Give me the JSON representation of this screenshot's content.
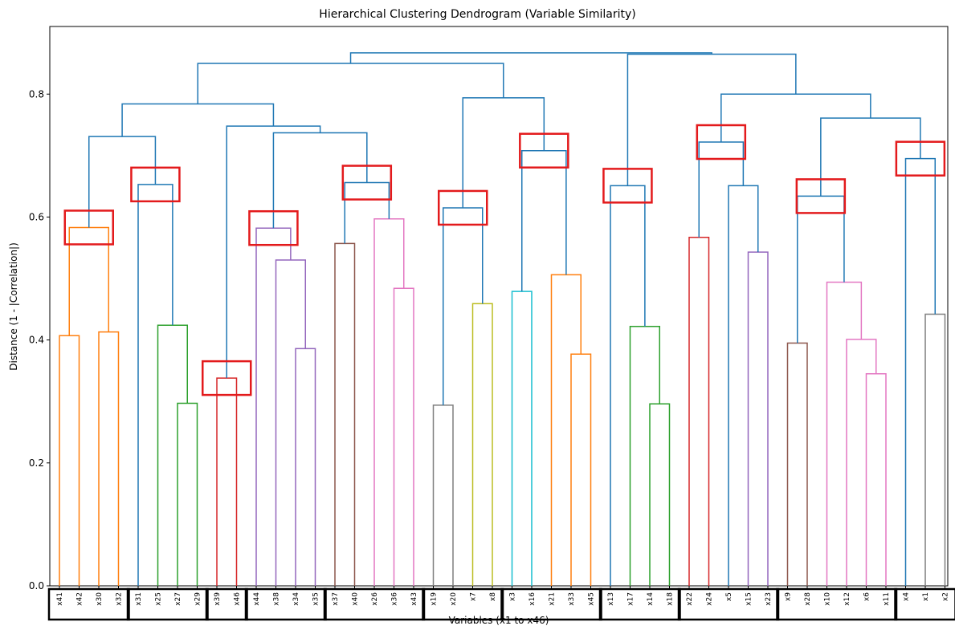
{
  "chart_data": {
    "type": "dendrogram",
    "title": "Hierarchical Clustering Dendrogram (Variable Similarity)",
    "xlabel": "Variables (x1 to x46)",
    "ylabel": "Distance (1 - |Correlation|)",
    "ylim": [
      0,
      0.91
    ],
    "yticks": [
      0.0,
      0.2,
      0.4,
      0.6,
      0.8
    ],
    "ytick_labels": [
      "0.0",
      "0.2",
      "0.4",
      "0.6",
      "0.8"
    ],
    "leaves": [
      "x41",
      "x42",
      "x30",
      "x32",
      "x31",
      "x25",
      "x27",
      "x29",
      "x39",
      "x46",
      "x44",
      "x38",
      "x34",
      "x35",
      "x37",
      "x40",
      "x26",
      "x36",
      "x43",
      "x19",
      "x20",
      "x7",
      "x8",
      "x3",
      "x16",
      "x21",
      "x33",
      "x45",
      "x13",
      "x17",
      "x14",
      "x18",
      "x22",
      "x24",
      "x5",
      "x15",
      "x23",
      "x9",
      "x28",
      "x10",
      "x12",
      "x6",
      "x11",
      "x4",
      "x1",
      "x2"
    ],
    "merges": [
      {
        "left": 0,
        "right": 1,
        "height": 0.407,
        "color": "#ff7f0e"
      },
      {
        "left": 2,
        "right": 3,
        "height": 0.413,
        "color": "#ff7f0e"
      },
      {
        "left": 46,
        "right": 47,
        "height": 0.583,
        "color": "#ff7f0e"
      },
      {
        "left": 6,
        "right": 7,
        "height": 0.297,
        "color": "#2ca02c"
      },
      {
        "left": 5,
        "right": 49,
        "height": 0.424,
        "color": "#2ca02c"
      },
      {
        "left": 4,
        "right": 50,
        "height": 0.653,
        "color": "#1f77b4"
      },
      {
        "left": 48,
        "right": 51,
        "height": 0.731,
        "color": "#1f77b4"
      },
      {
        "left": 8,
        "right": 9,
        "height": 0.338,
        "color": "#d62728"
      },
      {
        "left": 12,
        "right": 13,
        "height": 0.386,
        "color": "#9467bd"
      },
      {
        "left": 11,
        "right": 54,
        "height": 0.53,
        "color": "#9467bd"
      },
      {
        "left": 10,
        "right": 55,
        "height": 0.582,
        "color": "#9467bd"
      },
      {
        "left": 14,
        "right": 15,
        "height": 0.557,
        "color": "#8c564b"
      },
      {
        "left": 17,
        "right": 18,
        "height": 0.484,
        "color": "#e377c2"
      },
      {
        "left": 16,
        "right": 58,
        "height": 0.597,
        "color": "#e377c2"
      },
      {
        "left": 57,
        "right": 59,
        "height": 0.656,
        "color": "#1f77b4"
      },
      {
        "left": 56,
        "right": 60,
        "height": 0.737,
        "color": "#1f77b4"
      },
      {
        "left": 53,
        "right": 61,
        "height": 0.748,
        "color": "#1f77b4"
      },
      {
        "left": 52,
        "right": 62,
        "height": 0.784,
        "color": "#1f77b4"
      },
      {
        "left": 19,
        "right": 20,
        "height": 0.294,
        "color": "#7f7f7f"
      },
      {
        "left": 21,
        "right": 22,
        "height": 0.459,
        "color": "#bcbd22"
      },
      {
        "left": 64,
        "right": 65,
        "height": 0.615,
        "color": "#1f77b4"
      },
      {
        "left": 23,
        "right": 24,
        "height": 0.479,
        "color": "#17becf"
      },
      {
        "left": 26,
        "right": 27,
        "height": 0.377,
        "color": "#ff7f0e"
      },
      {
        "left": 25,
        "right": 68,
        "height": 0.506,
        "color": "#ff7f0e"
      },
      {
        "left": 67,
        "right": 69,
        "height": 0.708,
        "color": "#1f77b4"
      },
      {
        "left": 66,
        "right": 70,
        "height": 0.794,
        "color": "#1f77b4"
      },
      {
        "left": 63,
        "right": 71,
        "height": 0.85,
        "color": "#1f77b4"
      },
      {
        "left": 30,
        "right": 31,
        "height": 0.296,
        "color": "#2ca02c"
      },
      {
        "left": 29,
        "right": 73,
        "height": 0.422,
        "color": "#2ca02c"
      },
      {
        "left": 28,
        "right": 74,
        "height": 0.651,
        "color": "#1f77b4"
      },
      {
        "left": 32,
        "right": 33,
        "height": 0.567,
        "color": "#d62728"
      },
      {
        "left": 35,
        "right": 36,
        "height": 0.543,
        "color": "#9467bd"
      },
      {
        "left": 34,
        "right": 77,
        "height": 0.651,
        "color": "#1f77b4"
      },
      {
        "left": 76,
        "right": 78,
        "height": 0.722,
        "color": "#1f77b4"
      },
      {
        "left": 37,
        "right": 38,
        "height": 0.395,
        "color": "#8c564b"
      },
      {
        "left": 41,
        "right": 42,
        "height": 0.345,
        "color": "#e377c2"
      },
      {
        "left": 40,
        "right": 81,
        "height": 0.401,
        "color": "#e377c2"
      },
      {
        "left": 39,
        "right": 82,
        "height": 0.494,
        "color": "#e377c2"
      },
      {
        "left": 80,
        "right": 83,
        "height": 0.634,
        "color": "#1f77b4"
      },
      {
        "left": 44,
        "right": 45,
        "height": 0.442,
        "color": "#7f7f7f"
      },
      {
        "left": 43,
        "right": 85,
        "height": 0.695,
        "color": "#1f77b4"
      },
      {
        "left": 84,
        "right": 86,
        "height": 0.761,
        "color": "#1f77b4"
      },
      {
        "left": 79,
        "right": 87,
        "height": 0.8,
        "color": "#1f77b4"
      },
      {
        "left": 75,
        "right": 88,
        "height": 0.865,
        "color": "#1f77b4"
      },
      {
        "left": 72,
        "right": 89,
        "height": 0.867,
        "color": "#1f77b4"
      }
    ],
    "highlight_color": "#e31a1c",
    "group_box_color": "#000000",
    "highlight_merges": [
      2,
      5,
      7,
      10,
      14,
      20,
      24,
      29,
      33,
      38,
      40
    ],
    "leaf_groups": [
      [
        0,
        3
      ],
      [
        4,
        7
      ],
      [
        8,
        9
      ],
      [
        10,
        13
      ],
      [
        14,
        18
      ],
      [
        19,
        22
      ],
      [
        23,
        27
      ],
      [
        28,
        31
      ],
      [
        32,
        36
      ],
      [
        37,
        42
      ],
      [
        43,
        45
      ]
    ]
  }
}
